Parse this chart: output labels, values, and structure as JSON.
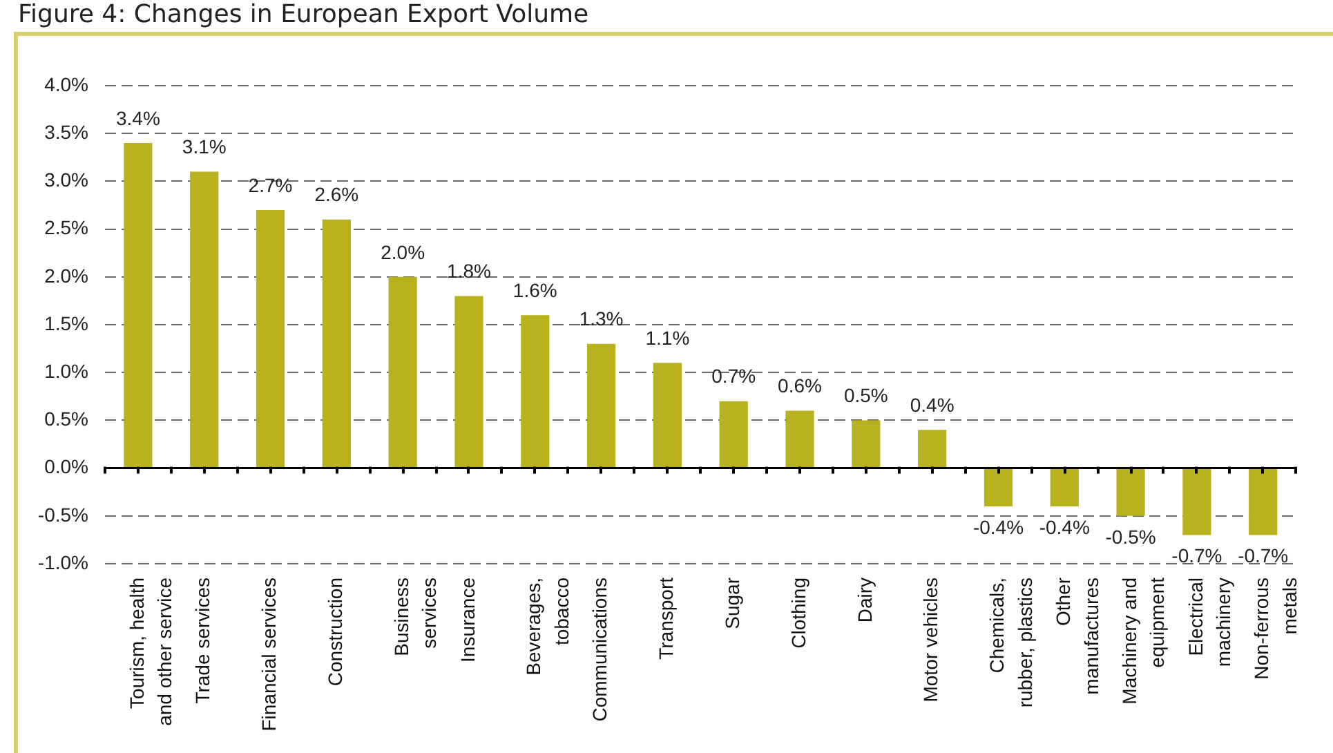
{
  "chart_data": {
    "type": "bar",
    "title": "Figure 4: Changes in European Export Volume",
    "categories": [
      "Tourism, health\nand other service",
      "Trade services",
      "Financial services",
      "Construction",
      "Business\nservices",
      "Insurance",
      "Beverages,\ntobacco",
      "Communications",
      "Transport",
      "Sugar",
      "Clothing",
      "Dairy",
      "Motor vehicles",
      "Chemicals,\nrubber, plastics",
      "Other\nmanufactures",
      "Machinery and\nequipment",
      "Electrical\nmachinery",
      "Non-ferrous\nmetals"
    ],
    "values": [
      3.4,
      3.1,
      2.7,
      2.6,
      2.0,
      1.8,
      1.6,
      1.3,
      1.1,
      0.7,
      0.6,
      0.5,
      0.4,
      -0.4,
      -0.4,
      -0.5,
      -0.7,
      -0.7
    ],
    "value_labels": [
      "3.4%",
      "3.1%",
      "2.7%",
      "2.6%",
      "2.0%",
      "1.8%",
      "1.6%",
      "1.3%",
      "1.1%",
      "0.7%",
      "0.6%",
      "0.5%",
      "0.4%",
      "-0.4%",
      "-0.4%",
      "-0.5%",
      "-0.7%",
      "-0.7%"
    ],
    "color": "#b8b21e",
    "ylim": [
      -1,
      4
    ],
    "yticks": [
      {
        "value": -1,
        "label": "-1.0%"
      },
      {
        "value": -0.5,
        "label": "-0.5%"
      },
      {
        "value": 0,
        "label": "0.0%"
      },
      {
        "value": 0.5,
        "label": "0.5%"
      },
      {
        "value": 1,
        "label": "1.0%"
      },
      {
        "value": 1.5,
        "label": "1.5%"
      },
      {
        "value": 2,
        "label": "2.0%"
      },
      {
        "value": 2.5,
        "label": "2.5%"
      },
      {
        "value": 3,
        "label": "3.0%"
      },
      {
        "value": 3.5,
        "label": "3.5%"
      },
      {
        "value": 4,
        "label": "4.0%"
      }
    ],
    "grid": "y"
  }
}
